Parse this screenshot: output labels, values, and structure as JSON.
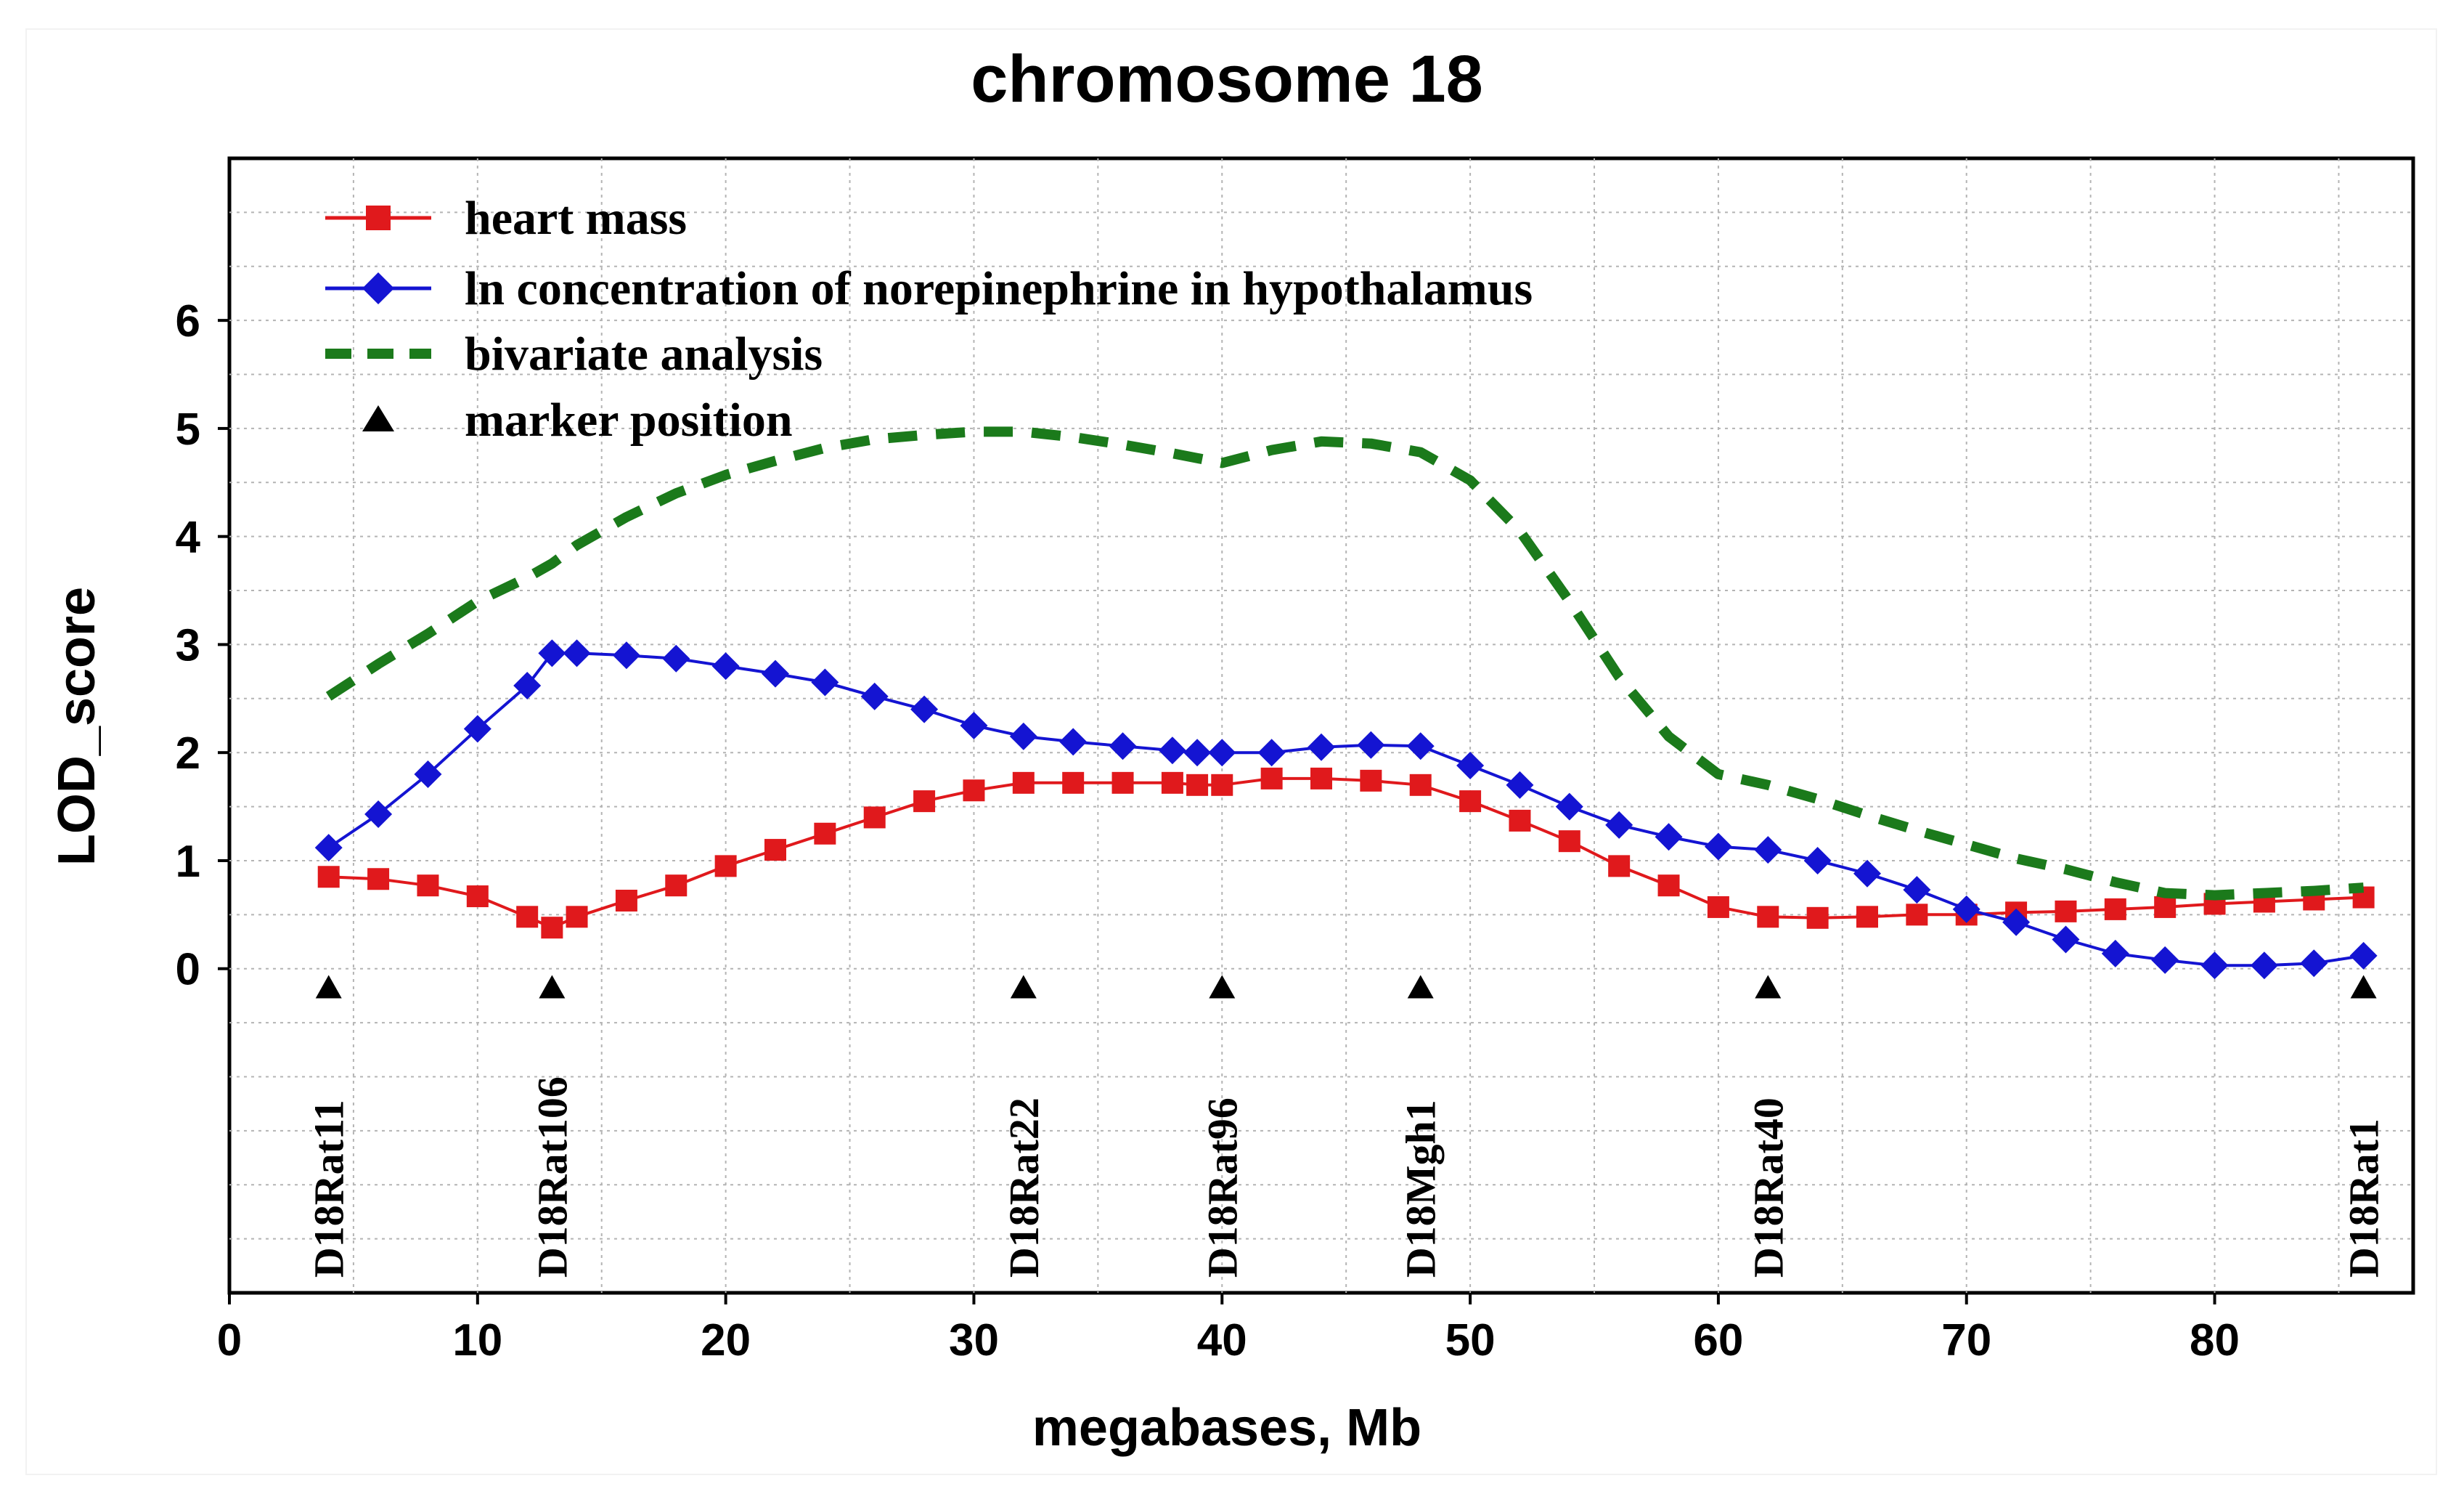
{
  "chart_data": {
    "type": "line",
    "title": "chromosome 18",
    "xlabel": "megabases, Mb",
    "ylabel": "LOD_score",
    "xlim": [
      0,
      88
    ],
    "ylim": [
      -3,
      7.5
    ],
    "xticks": [
      0,
      10,
      20,
      30,
      40,
      50,
      60,
      70,
      80
    ],
    "yticks": [
      0,
      1,
      2,
      3,
      4,
      5,
      6
    ],
    "grid": true,
    "legend_position": "top-left",
    "legend": [
      {
        "label": "heart mass",
        "style": "red-square-line"
      },
      {
        "label": "ln concentration of norepinephrine in hypothalamus",
        "style": "blue-diamond-line"
      },
      {
        "label": "bivariate analysis",
        "style": "green-dashed"
      },
      {
        "label": "marker position",
        "style": "black-triangle"
      }
    ],
    "series": [
      {
        "name": "heart mass",
        "color": "#e0191c",
        "x": [
          4,
          6,
          8,
          10,
          12,
          13,
          14,
          16,
          18,
          20,
          22,
          24,
          26,
          28,
          30,
          32,
          34,
          36,
          38,
          39,
          40,
          42,
          44,
          46,
          48,
          50,
          52,
          54,
          56,
          58,
          60,
          62,
          64,
          66,
          68,
          70,
          72,
          74,
          76,
          78,
          80,
          82,
          84,
          86
        ],
        "y": [
          0.85,
          0.83,
          0.77,
          0.67,
          0.48,
          0.38,
          0.48,
          0.63,
          0.77,
          0.95,
          1.1,
          1.25,
          1.4,
          1.55,
          1.65,
          1.72,
          1.72,
          1.72,
          1.72,
          1.7,
          1.7,
          1.76,
          1.76,
          1.74,
          1.7,
          1.55,
          1.37,
          1.18,
          0.95,
          0.77,
          0.57,
          0.48,
          0.47,
          0.48,
          0.5,
          0.5,
          0.52,
          0.53,
          0.55,
          0.57,
          0.6,
          0.62,
          0.64,
          0.66
        ]
      },
      {
        "name": "ln concentration of norepinephrine in hypothalamus",
        "color": "#1414d2",
        "x": [
          4,
          6,
          8,
          10,
          12,
          13,
          14,
          16,
          18,
          20,
          22,
          24,
          26,
          28,
          30,
          32,
          34,
          36,
          38,
          39,
          40,
          42,
          44,
          46,
          48,
          50,
          52,
          54,
          56,
          58,
          60,
          62,
          64,
          66,
          68,
          70,
          72,
          74,
          76,
          78,
          80,
          82,
          84,
          86
        ],
        "y": [
          1.12,
          1.43,
          1.8,
          2.22,
          2.62,
          2.92,
          2.92,
          2.9,
          2.87,
          2.8,
          2.73,
          2.65,
          2.52,
          2.4,
          2.25,
          2.15,
          2.1,
          2.06,
          2.02,
          2.0,
          2.0,
          2.0,
          2.05,
          2.07,
          2.06,
          1.88,
          1.7,
          1.5,
          1.33,
          1.22,
          1.13,
          1.1,
          1.0,
          0.88,
          0.73,
          0.55,
          0.43,
          0.27,
          0.14,
          0.08,
          0.03,
          0.03,
          0.05,
          0.12
        ]
      },
      {
        "name": "bivariate analysis",
        "color": "#1b7a1b",
        "x": [
          4,
          6,
          8,
          10,
          12,
          13,
          14,
          16,
          18,
          20,
          22,
          24,
          26,
          28,
          30,
          32,
          34,
          36,
          38,
          40,
          42,
          44,
          46,
          48,
          50,
          52,
          54,
          56,
          58,
          60,
          62,
          64,
          66,
          68,
          70,
          72,
          74,
          76,
          78,
          80,
          82,
          84,
          86
        ],
        "y": [
          2.52,
          2.82,
          3.1,
          3.4,
          3.62,
          3.75,
          3.92,
          4.18,
          4.4,
          4.57,
          4.7,
          4.82,
          4.9,
          4.94,
          4.97,
          4.97,
          4.92,
          4.85,
          4.77,
          4.68,
          4.8,
          4.88,
          4.86,
          4.78,
          4.52,
          4.05,
          3.4,
          2.7,
          2.15,
          1.8,
          1.7,
          1.57,
          1.42,
          1.28,
          1.15,
          1.02,
          0.92,
          0.8,
          0.7,
          0.68,
          0.7,
          0.72,
          0.75
        ]
      }
    ],
    "markers": [
      {
        "name": "D18Rat11",
        "x": 4
      },
      {
        "name": "D18Rat106",
        "x": 13
      },
      {
        "name": "D18Rat22",
        "x": 32
      },
      {
        "name": "D18Rat96",
        "x": 40
      },
      {
        "name": "D18Mgh1",
        "x": 48
      },
      {
        "name": "D18Rat40",
        "x": 62
      },
      {
        "name": "D18Rat1",
        "x": 86
      }
    ]
  }
}
